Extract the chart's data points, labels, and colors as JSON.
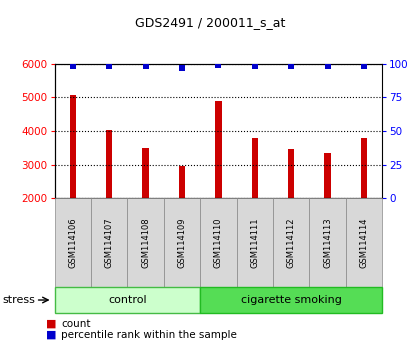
{
  "title": "GDS2491 / 200011_s_at",
  "samples": [
    "GSM114106",
    "GSM114107",
    "GSM114108",
    "GSM114109",
    "GSM114110",
    "GSM114111",
    "GSM114112",
    "GSM114113",
    "GSM114114"
  ],
  "counts": [
    5080,
    4020,
    3480,
    2950,
    4890,
    3800,
    3450,
    3360,
    3800
  ],
  "percentile_ranks": [
    98,
    98,
    98,
    97,
    99,
    98,
    98,
    98,
    98
  ],
  "ylim_left": [
    2000,
    6000
  ],
  "ylim_right": [
    0,
    100
  ],
  "yticks_left": [
    2000,
    3000,
    4000,
    5000,
    6000
  ],
  "yticks_right": [
    0,
    25,
    50,
    75,
    100
  ],
  "bar_color": "#cc0000",
  "dot_color": "#0000cc",
  "control_count": 4,
  "smoking_count": 5,
  "control_label": "control",
  "smoking_label": "cigarette smoking",
  "stress_label": "stress",
  "legend_count": "count",
  "legend_percentile": "percentile rank within the sample",
  "control_color_light": "#ccffcc",
  "smoking_color_dark": "#55dd55",
  "sample_box_color": "#d8d8d8",
  "background_color": "#ffffff"
}
